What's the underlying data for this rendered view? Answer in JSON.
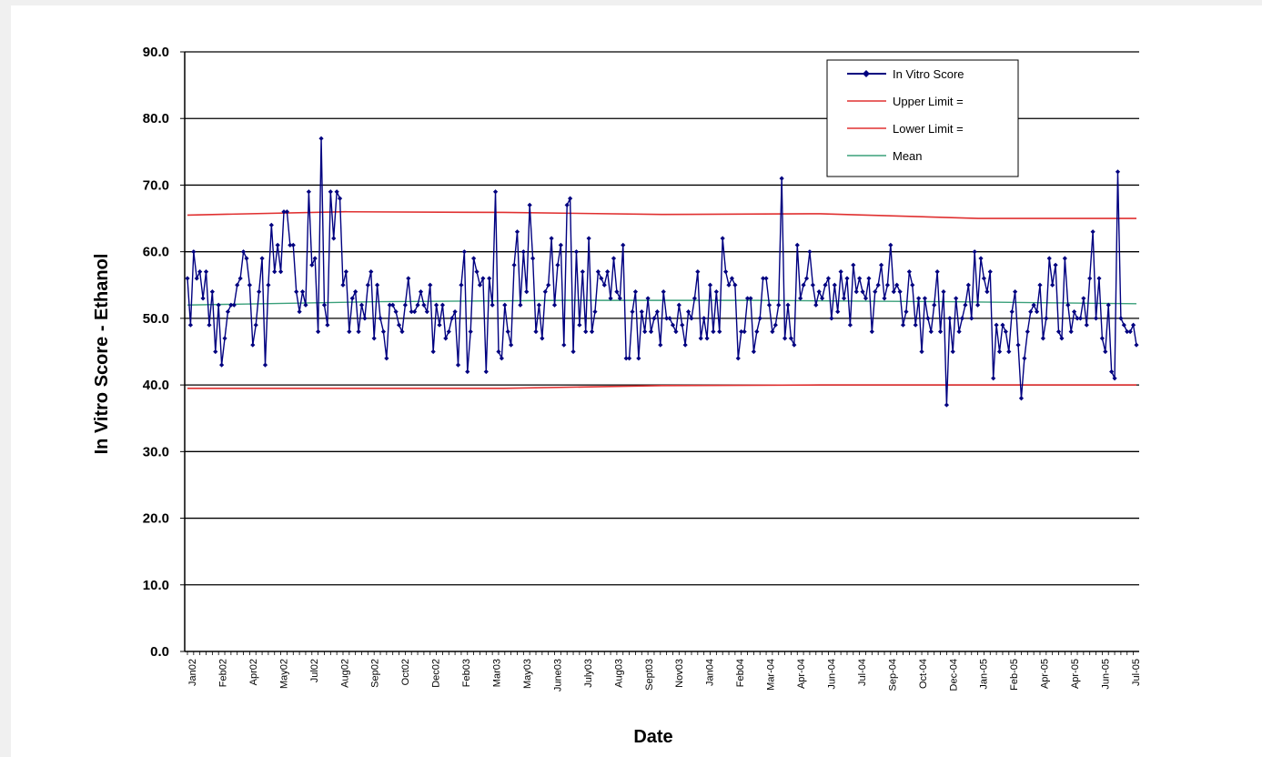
{
  "chart_data": {
    "type": "line",
    "title": "",
    "xlabel": "Date",
    "ylabel": "In Vitro Score - Ethanol",
    "ylim": [
      0,
      90
    ],
    "yticks": [
      "0.0",
      "10.0",
      "20.0",
      "30.0",
      "40.0",
      "50.0",
      "60.0",
      "70.0",
      "80.0",
      "90.0"
    ],
    "grid": true,
    "legend_position": "top-right",
    "x_tick_labels": [
      "Jan02",
      "Feb02",
      "Apr02",
      "May02",
      "Jul02",
      "Aug02",
      "Sep02",
      "Oct02",
      "Dec02",
      "Feb03",
      "Mar03",
      "May03",
      "June03",
      "July03",
      "Aug03",
      "Sept03",
      "Nov03",
      "Jan04",
      "Feb04",
      "Mar-04",
      "Apr-04",
      "Jun-04",
      "Jul-04",
      "Sep-04",
      "Oct-04",
      "Dec-04",
      "Jan-05",
      "Feb-05",
      "Apr-05",
      "Apr-05",
      "Jun-05",
      "Jul-05"
    ],
    "colors": {
      "score": "#000080",
      "upper": "#e03030",
      "lower": "#e03030",
      "mean": "#3aa07a",
      "grid": "#000000"
    },
    "series": [
      {
        "name": "In Vitro Score",
        "values": [
          56,
          49,
          60,
          56,
          57,
          53,
          57,
          49,
          54,
          45,
          52,
          43,
          47,
          51,
          52,
          52,
          55,
          56,
          60,
          59,
          55,
          46,
          49,
          54,
          59,
          43,
          55,
          64,
          57,
          61,
          57,
          66,
          66,
          61,
          61,
          54,
          51,
          54,
          52,
          69,
          58,
          59,
          48,
          77,
          52,
          49,
          69,
          62,
          69,
          68,
          55,
          57,
          48,
          53,
          54,
          48,
          52,
          50,
          55,
          57,
          47,
          55,
          50,
          48,
          44,
          52,
          52,
          51,
          49,
          48,
          52,
          56,
          51,
          51,
          52,
          54,
          52,
          51,
          55,
          45,
          52,
          49,
          52,
          47,
          48,
          50,
          51,
          43,
          55,
          60,
          42,
          48,
          59,
          57,
          55,
          56,
          42,
          56,
          52,
          69,
          45,
          44,
          52,
          48,
          46,
          58,
          63,
          52,
          60,
          54,
          67,
          59,
          48,
          52,
          47,
          54,
          55,
          62,
          52,
          58,
          61,
          46,
          67,
          68,
          45,
          60,
          49,
          57,
          48,
          62,
          48,
          51,
          57,
          56,
          55,
          57,
          53,
          59,
          54,
          53,
          61,
          44,
          44,
          51,
          54,
          44,
          51,
          48,
          53,
          48,
          50,
          51,
          46,
          54,
          50,
          50,
          49,
          48,
          52,
          49,
          46,
          51,
          50,
          53,
          57,
          47,
          50,
          47,
          55,
          48,
          54,
          48,
          62,
          57,
          55,
          56,
          55,
          44,
          48,
          48,
          53,
          53,
          45,
          48,
          50,
          56,
          56,
          52,
          48,
          49,
          52,
          71,
          47,
          52,
          47,
          46,
          61,
          53,
          55,
          56,
          60,
          55,
          52,
          54,
          53,
          55,
          56,
          50,
          55,
          51,
          57,
          53,
          56,
          49,
          58,
          54,
          56,
          54,
          53,
          56,
          48,
          54,
          55,
          58,
          53,
          55,
          61,
          54,
          55,
          54,
          49,
          51,
          57,
          55,
          49,
          53,
          45,
          53,
          50,
          48,
          52,
          57,
          48,
          54,
          37,
          50,
          45,
          53,
          48,
          50,
          52,
          55,
          50,
          60,
          52,
          59,
          56,
          54,
          57,
          41,
          49,
          45,
          49,
          48,
          45,
          51,
          54,
          46,
          38,
          44,
          48,
          51,
          52,
          51,
          55,
          47,
          50,
          59,
          55,
          58,
          48,
          47,
          59,
          52,
          48,
          51,
          50,
          50,
          53,
          49,
          56,
          63,
          50,
          56,
          47,
          45,
          52,
          42,
          41,
          72,
          50,
          49,
          48,
          48,
          49,
          46
        ]
      },
      {
        "name": "Upper Limit =",
        "values": [
          65.5,
          66.0,
          65.9,
          65.6,
          65.7,
          65.0,
          65.0
        ]
      },
      {
        "name": "Lower Limit =",
        "values": [
          39.5,
          39.5,
          39.5,
          39.9,
          40.0,
          40.0,
          40.0
        ]
      },
      {
        "name": "Mean",
        "values": [
          52.0,
          52.5,
          52.7,
          52.7,
          52.5,
          52.2
        ]
      }
    ]
  }
}
